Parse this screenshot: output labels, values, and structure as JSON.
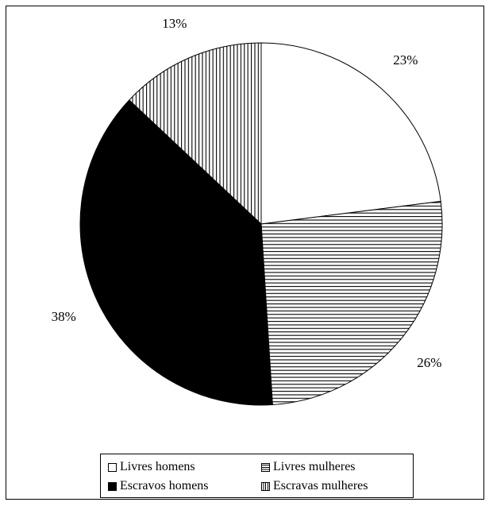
{
  "chart_data": {
    "type": "pie",
    "title": "",
    "slices": [
      {
        "label": "Livres homens",
        "value": 23,
        "display": "23%",
        "fill": "#ffffff",
        "pattern": "solid"
      },
      {
        "label": "Livres mulheres",
        "value": 26,
        "display": "26%",
        "fill": "#ffffff",
        "pattern": "horizontal-lines"
      },
      {
        "label": "Escravos homens",
        "value": 38,
        "display": "38%",
        "fill": "#000000",
        "pattern": "solid"
      },
      {
        "label": "Escravas mulheres",
        "value": 13,
        "display": "13%",
        "fill": "#ffffff",
        "pattern": "vertical-lines"
      }
    ],
    "legend_position": "bottom",
    "start": "12 o'clock",
    "direction": "clockwise"
  },
  "legend": {
    "items": [
      {
        "label": "Livres homens"
      },
      {
        "label": "Livres mulheres"
      },
      {
        "label": "Escravos homens"
      },
      {
        "label": "Escravas mulheres"
      }
    ]
  }
}
